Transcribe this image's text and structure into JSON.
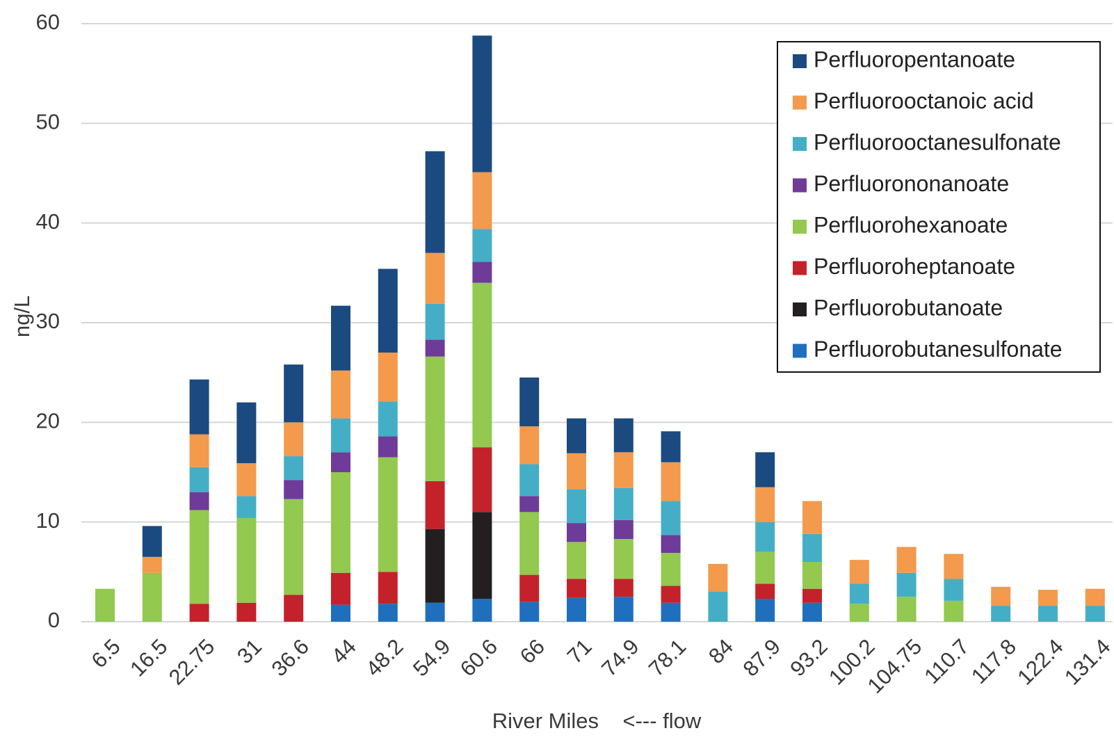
{
  "chart_data": {
    "type": "bar",
    "stacked": true,
    "title": "",
    "xlabel": "River Miles    <--- flow",
    "ylabel": "ng/L",
    "ylim": [
      0,
      60
    ],
    "yticks": [
      0,
      10,
      20,
      30,
      40,
      50,
      60
    ],
    "grid": true,
    "legend_position": "top-right",
    "categories": [
      "6.5",
      "16.5",
      "22.75",
      "31",
      "36.6",
      "44",
      "48.2",
      "54.9",
      "60.6",
      "66",
      "71",
      "74.9",
      "78.1",
      "84",
      "87.9",
      "93.2",
      "100.2",
      "104.75",
      "110.7",
      "117.8",
      "122.4",
      "131.4"
    ],
    "series": [
      {
        "name": "Perfluorobutanesulfonate",
        "color": "#1f6fbf",
        "values": [
          0,
          0,
          0,
          0,
          0,
          1.7,
          1.8,
          1.9,
          2.3,
          2.0,
          2.4,
          2.5,
          1.9,
          0,
          2.3,
          1.9,
          0,
          0,
          0,
          0,
          0,
          0
        ]
      },
      {
        "name": "Perfluorobutanoate",
        "color": "#231f20",
        "values": [
          0,
          0,
          0,
          0,
          0,
          0,
          0,
          7.4,
          8.7,
          0,
          0,
          0,
          0,
          0,
          0,
          0,
          0,
          0,
          0,
          0,
          0,
          0
        ]
      },
      {
        "name": "Perfluoroheptanoate",
        "color": "#c4222a",
        "values": [
          0,
          0,
          1.8,
          1.9,
          2.7,
          3.2,
          3.2,
          4.8,
          6.5,
          2.7,
          1.9,
          1.8,
          1.7,
          0,
          1.5,
          1.4,
          0,
          0,
          0,
          0,
          0,
          0
        ]
      },
      {
        "name": "Perfluorohexanoate",
        "color": "#92c94e",
        "values": [
          3.3,
          4.9,
          9.4,
          8.5,
          9.6,
          10.1,
          11.5,
          12.5,
          16.5,
          6.3,
          3.7,
          4.0,
          3.3,
          0,
          3.2,
          2.7,
          1.8,
          2.5,
          2.1,
          0,
          0,
          0
        ]
      },
      {
        "name": "Perfluorononanoate",
        "color": "#6f3b99",
        "values": [
          0,
          0,
          1.8,
          0,
          1.9,
          2.0,
          2.1,
          1.7,
          2.1,
          1.6,
          1.9,
          1.9,
          1.8,
          0,
          0,
          0,
          0,
          0,
          0,
          0,
          0,
          0
        ]
      },
      {
        "name": "Perfluorooctanesulfonate",
        "color": "#45aec7",
        "values": [
          0,
          0,
          2.5,
          2.2,
          2.4,
          3.4,
          3.5,
          3.6,
          3.3,
          3.2,
          3.4,
          3.2,
          3.4,
          3.0,
          3.0,
          2.8,
          2.0,
          2.4,
          2.2,
          1.6,
          1.6,
          1.6
        ]
      },
      {
        "name": "Perfluorooctanoic acid",
        "color": "#f39a4c",
        "values": [
          0,
          1.6,
          3.3,
          3.3,
          3.4,
          4.8,
          4.9,
          5.1,
          5.7,
          3.8,
          3.6,
          3.6,
          3.9,
          2.8,
          3.5,
          3.3,
          2.4,
          2.6,
          2.5,
          1.9,
          1.6,
          1.7
        ]
      },
      {
        "name": "Perfluoropentanoate",
        "color": "#1a4a80",
        "values": [
          0,
          3.1,
          5.5,
          6.1,
          5.8,
          6.5,
          8.4,
          10.2,
          13.7,
          4.9,
          3.5,
          3.4,
          3.1,
          0,
          3.5,
          0,
          0,
          0,
          0,
          0,
          0,
          0
        ]
      }
    ],
    "legend_order": [
      "Perfluoropentanoate",
      "Perfluorooctanoic acid",
      "Perfluorooctanesulfonate",
      "Perfluorononanoate",
      "Perfluorohexanoate",
      "Perfluoroheptanoate",
      "Perfluorobutanoate",
      "Perfluorobutanesulfonate"
    ]
  }
}
